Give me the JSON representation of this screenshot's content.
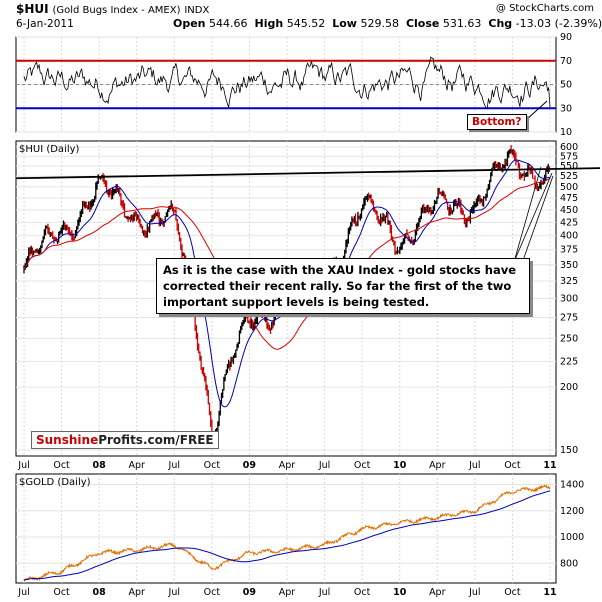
{
  "header": {
    "symbol": "$HUI",
    "name": "(Gold Bugs Index - AMEX)",
    "exchange": "INDX",
    "date": "6-Jan-2011",
    "open_label": "Open",
    "open": "544.66",
    "high_label": "High",
    "high": "545.52",
    "low_label": "Low",
    "low": "529.58",
    "close_label": "Close",
    "close": "531.63",
    "chg_label": "Chg",
    "chg": "-13.03 (-2.39%)",
    "copyright": "@ StockCharts.com"
  },
  "colors": {
    "price_bar": "#000000",
    "down_bar": "#cc0000",
    "ma_short": "#0000bb",
    "ma_long": "#dd0000",
    "gold_line": "#e07000",
    "gold_ma": "#0000bb",
    "rsi_line": "#000000",
    "rsi_upper": "#cc0000",
    "rsi_lower": "#0000cc",
    "trend_line": "#000000"
  },
  "annotations": {
    "main_text": "As it is the case with the XAU Index - gold stocks have corrected their recent rally. So far the first of the two important support levels is being tested.",
    "bottom_callout": "Bottom?",
    "brand_part1": "Sunshine",
    "brand_part2": "Profits.com/FREE"
  },
  "chart_data": [
    {
      "type": "line",
      "panel": "rsi",
      "ylim": [
        10,
        90
      ],
      "ticks": [
        10,
        30,
        50,
        70,
        90
      ],
      "upper_line": 70,
      "lower_line": 30,
      "oscillation_range": [
        25,
        80
      ]
    },
    {
      "type": "ohlc",
      "panel": "main",
      "title": "$HUI (Daily)",
      "ylim": [
        150,
        600
      ],
      "scale": "log",
      "ticks": [
        150,
        200,
        225,
        250,
        275,
        300,
        325,
        350,
        375,
        400,
        425,
        450,
        475,
        500,
        525,
        550,
        575,
        600
      ],
      "xlabels": [
        "Jul",
        "Oct",
        "08",
        "Apr",
        "Jul",
        "Oct",
        "09",
        "Apr",
        "Jul",
        "Oct",
        "10",
        "Apr",
        "Jul",
        "Oct",
        "11"
      ],
      "x": [
        "2007-07",
        "2007-10",
        "2008-01",
        "2008-04",
        "2008-07",
        "2008-10",
        "2009-01",
        "2009-04",
        "2009-07",
        "2009-10",
        "2010-01",
        "2010-04",
        "2010-07",
        "2010-10",
        "2011-01"
      ],
      "series": [
        {
          "name": "$HUI",
          "values": [
            340,
            410,
            490,
            440,
            420,
            165,
            270,
            300,
            330,
            450,
            400,
            450,
            470,
            560,
            532
          ]
        }
      ],
      "support_line": [
        520,
        530
      ]
    },
    {
      "type": "line",
      "panel": "gold",
      "title": "$GOLD (Daily)",
      "ylim": [
        650,
        1480
      ],
      "ticks": [
        800,
        1000,
        1200,
        1400
      ],
      "xlabels": [
        "Jul",
        "Oct",
        "08",
        "Apr",
        "Jul",
        "Oct",
        "09",
        "Apr",
        "Jul",
        "Oct",
        "10",
        "Apr",
        "Jul",
        "Oct",
        "11"
      ],
      "x": [
        "2007-07",
        "2007-10",
        "2008-01",
        "2008-04",
        "2008-07",
        "2008-10",
        "2009-01",
        "2009-04",
        "2009-07",
        "2009-10",
        "2010-01",
        "2010-04",
        "2010-07",
        "2010-10",
        "2011-01"
      ],
      "series": [
        {
          "name": "$GOLD",
          "values": [
            665,
            740,
            880,
            900,
            940,
            760,
            880,
            900,
            940,
            1060,
            1110,
            1150,
            1200,
            1350,
            1380
          ]
        }
      ]
    }
  ]
}
